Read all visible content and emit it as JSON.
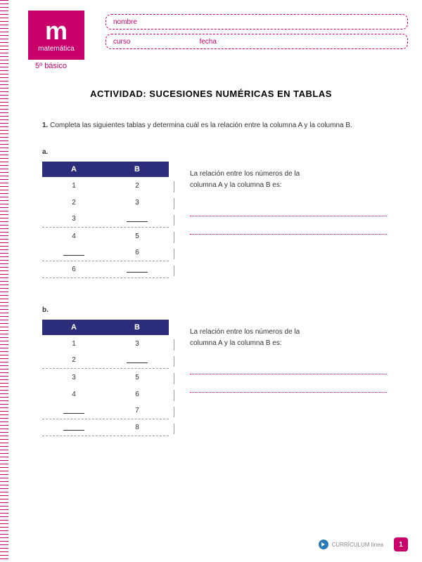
{
  "header": {
    "logo_letter": "m",
    "logo_word": "matemática",
    "grade": "5º básico",
    "name_label": "nombre",
    "course_label": "curso",
    "date_label": "fecha"
  },
  "title": "ACTIVIDAD: SUCESIONES NUMÉRICAS EN TABLAS",
  "instruction": {
    "num": "1.",
    "text": "Completa las siguientes tablas y determina cuál es la relación entre la columna A y la columna B."
  },
  "colA": "A",
  "colB": "B",
  "problems": [
    {
      "label": "a.",
      "rows": [
        {
          "a": "1",
          "b": "2"
        },
        {
          "a": "2",
          "b": "3"
        },
        {
          "a": "3",
          "b": ""
        },
        {
          "a": "4",
          "b": "5"
        },
        {
          "a": "",
          "b": "6"
        },
        {
          "a": "6",
          "b": ""
        }
      ]
    },
    {
      "label": "b.",
      "rows": [
        {
          "a": "1",
          "b": "3"
        },
        {
          "a": "2",
          "b": ""
        },
        {
          "a": "3",
          "b": "5"
        },
        {
          "a": "4",
          "b": "6"
        },
        {
          "a": "",
          "b": "7"
        },
        {
          "a": "",
          "b": "8"
        }
      ]
    }
  ],
  "answer_prompt1": "La relación entre los números de la",
  "answer_prompt2": "columna A y la columna B es:",
  "footer": {
    "brand": "CURRÍCULUM línea",
    "page": "1"
  },
  "colors": {
    "brand": "#c9006b",
    "table_head": "#2b2d7a"
  }
}
